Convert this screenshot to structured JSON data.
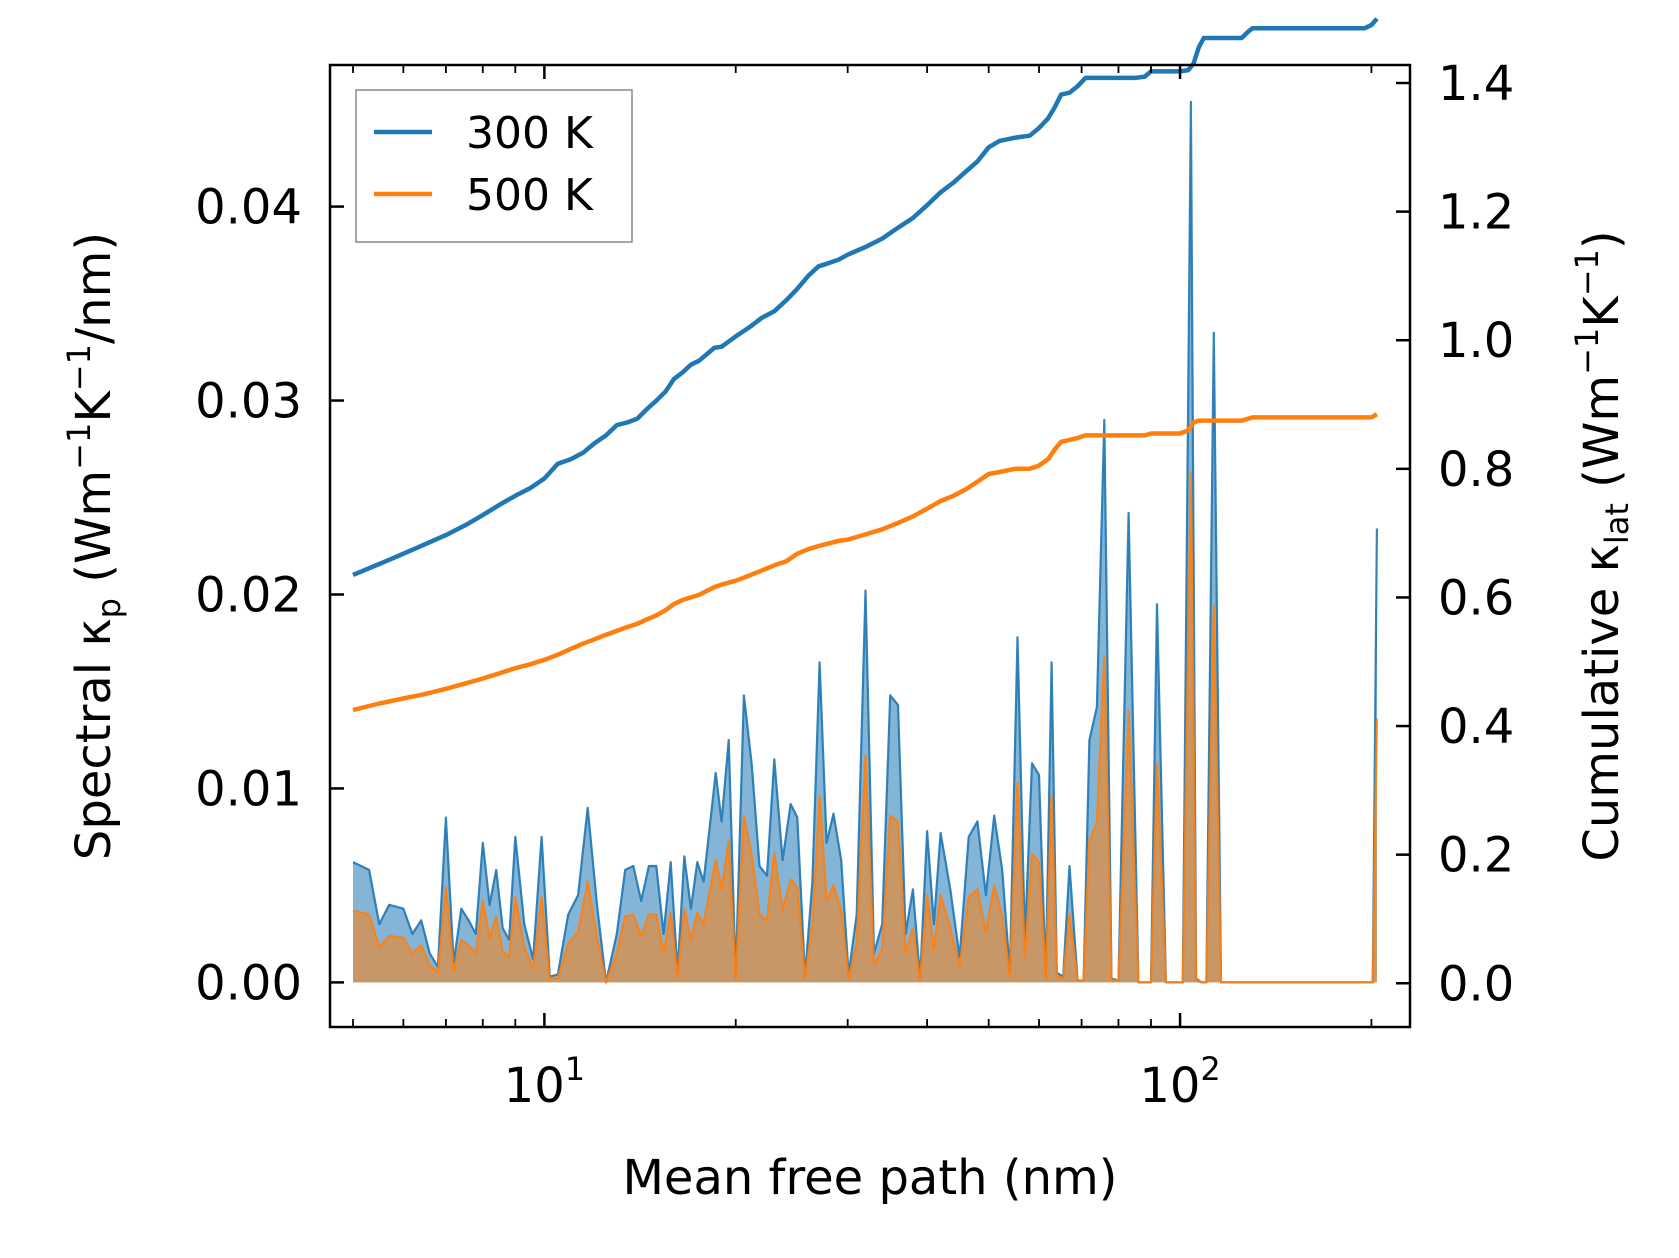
{
  "chart_data": {
    "type": "line",
    "xlabel": "Mean free path (nm)",
    "xscale": "log",
    "xlim": [
      4.6,
      230
    ],
    "x_ticks": [
      {
        "value": 10,
        "base": "10",
        "exp": "1"
      },
      {
        "value": 100,
        "base": "10",
        "exp": "2"
      }
    ],
    "y_left": {
      "label_pre": "Spectral κ",
      "label_sub": "p",
      "label_mid": " (Wm",
      "label_sup1": "−1",
      "label_mid2": "K",
      "label_sup2": "−1",
      "label_post": "/nm)",
      "lim": [
        -0.0023,
        0.0473
      ],
      "ticks": [
        0.0,
        0.01,
        0.02,
        0.03,
        0.04
      ],
      "tick_labels": [
        "0.00",
        "0.01",
        "0.02",
        "0.03",
        "0.04"
      ]
    },
    "y_right": {
      "label_pre": "Cumulative κ",
      "label_sub": "lat",
      "label_mid": " (Wm",
      "label_sup1": "−1",
      "label_mid2": "K",
      "label_sup2": "−1",
      "label_post": ")",
      "lim": [
        -0.068,
        1.428
      ],
      "ticks": [
        0.0,
        0.2,
        0.4,
        0.6,
        0.8,
        1.0,
        1.2,
        1.4
      ],
      "tick_labels": [
        "0.0",
        "0.2",
        "0.4",
        "0.6",
        "0.8",
        "1.0",
        "1.2",
        "1.4"
      ]
    },
    "legend": {
      "position": "top-left",
      "entries": [
        "300 K",
        "500 K"
      ]
    },
    "colors": {
      "300 K": "#1f77b4",
      "500 K": "#ff7f0e"
    },
    "spectral_series": [
      {
        "name": "300 K",
        "x": [
          5.0,
          5.3,
          5.5,
          5.7,
          6.0,
          6.2,
          6.4,
          6.6,
          6.8,
          7.0,
          7.2,
          7.4,
          7.6,
          7.8,
          8.0,
          8.2,
          8.4,
          8.6,
          8.8,
          9.0,
          9.3,
          9.6,
          9.9,
          10.2,
          10.5,
          10.9,
          11.3,
          11.7,
          12.1,
          12.5,
          13.0,
          13.4,
          13.8,
          14.2,
          14.6,
          15.0,
          15.4,
          15.8,
          16.2,
          16.6,
          17.0,
          17.4,
          17.8,
          18.2,
          18.6,
          19.0,
          19.5,
          20.0,
          20.6,
          21.2,
          21.8,
          22.4,
          23.0,
          23.7,
          24.4,
          25.0,
          25.7,
          26.4,
          27.1,
          27.8,
          28.5,
          29.3,
          30.1,
          31.0,
          32.0,
          33.0,
          34.0,
          35.0,
          36.0,
          37.0,
          38.0,
          39.0,
          40.0,
          41.0,
          42.0,
          43.5,
          45.0,
          46.5,
          48.0,
          49.5,
          51.0,
          52.5,
          54.0,
          55.5,
          57.0,
          58.5,
          60.0,
          61.5,
          62.8,
          64.0,
          65.5,
          67.0,
          69.0,
          70.5,
          72.0,
          74.0,
          76.0,
          78.0,
          80.0,
          83.0,
          86.0,
          88.0,
          90.0,
          92.0,
          95.0,
          98.0,
          101.0,
          104.0,
          106.0,
          108.0,
          110.0,
          113.0,
          116.0,
          119.0,
          122.0,
          124.5,
          127.0,
          130.0,
          135.0,
          140.0,
          150.0,
          160.0,
          180.0,
          195.0,
          201.0,
          204.0
        ],
        "y": [
          0.0062,
          0.0058,
          0.003,
          0.004,
          0.0038,
          0.0025,
          0.0032,
          0.0015,
          0.0008,
          0.0085,
          0.001,
          0.0038,
          0.0032,
          0.0025,
          0.0072,
          0.004,
          0.0058,
          0.0028,
          0.0022,
          0.0075,
          0.003,
          0.0012,
          0.0075,
          0.0003,
          0.0004,
          0.0035,
          0.0045,
          0.009,
          0.004,
          0.0,
          0.0025,
          0.0058,
          0.006,
          0.0042,
          0.006,
          0.006,
          0.0025,
          0.0062,
          0.0005,
          0.0065,
          0.0038,
          0.0062,
          0.0052,
          0.008,
          0.0108,
          0.0083,
          0.0125,
          0.0003,
          0.0148,
          0.0112,
          0.006,
          0.0055,
          0.0115,
          0.0063,
          0.0092,
          0.0085,
          0.0003,
          0.0052,
          0.0165,
          0.0072,
          0.0087,
          0.0063,
          0.0004,
          0.0035,
          0.0202,
          0.0015,
          0.003,
          0.0148,
          0.0143,
          0.0025,
          0.0048,
          0.0002,
          0.0078,
          0.003,
          0.0077,
          0.0048,
          0.0013,
          0.0075,
          0.0083,
          0.0045,
          0.0086,
          0.0058,
          0.0005,
          0.0178,
          0.0022,
          0.0113,
          0.0107,
          0.0003,
          0.0165,
          0.0005,
          0.0003,
          0.006,
          0.0001,
          0.0001,
          0.0125,
          0.0142,
          0.029,
          0.0002,
          0.0001,
          0.0242,
          0.0,
          0.0,
          0.0,
          0.0195,
          0.0,
          0.0,
          0.0,
          0.0454,
          0.0002,
          0.0,
          0.0,
          0.0335,
          0.0,
          0.0,
          0.0,
          0.0,
          0.0,
          0.0,
          0.0,
          0.0,
          0.0,
          0.0,
          0.0,
          0.0,
          0.0,
          0.0234
        ]
      },
      {
        "name": "500 K",
        "x": [
          5.0,
          5.3,
          5.5,
          5.7,
          6.0,
          6.2,
          6.4,
          6.6,
          6.8,
          7.0,
          7.2,
          7.4,
          7.6,
          7.8,
          8.0,
          8.2,
          8.4,
          8.6,
          8.8,
          9.0,
          9.3,
          9.6,
          9.9,
          10.2,
          10.5,
          10.9,
          11.3,
          11.7,
          12.1,
          12.5,
          13.0,
          13.4,
          13.8,
          14.2,
          14.6,
          15.0,
          15.4,
          15.8,
          16.2,
          16.6,
          17.0,
          17.4,
          17.8,
          18.2,
          18.6,
          19.0,
          19.5,
          20.0,
          20.6,
          21.2,
          21.8,
          22.4,
          23.0,
          23.7,
          24.4,
          25.0,
          25.7,
          26.4,
          27.1,
          27.8,
          28.5,
          29.3,
          30.1,
          31.0,
          32.0,
          33.0,
          34.0,
          35.0,
          36.0,
          37.0,
          38.0,
          39.0,
          40.0,
          41.0,
          42.0,
          43.5,
          45.0,
          46.5,
          48.0,
          49.5,
          51.0,
          52.5,
          54.0,
          55.5,
          57.0,
          58.5,
          60.0,
          61.5,
          62.8,
          64.0,
          65.5,
          67.0,
          69.0,
          70.5,
          72.0,
          74.0,
          76.0,
          78.0,
          80.0,
          83.0,
          86.0,
          88.0,
          90.0,
          92.0,
          95.0,
          98.0,
          101.0,
          104.0,
          106.0,
          108.0,
          110.0,
          113.0,
          116.0,
          119.0,
          122.0,
          124.5,
          127.0,
          130.0,
          135.0,
          140.0,
          150.0,
          160.0,
          180.0,
          195.0,
          201.0,
          204.0
        ],
        "y": [
          0.0037,
          0.0035,
          0.0018,
          0.0024,
          0.0023,
          0.0015,
          0.0019,
          0.0009,
          0.0005,
          0.0049,
          0.0006,
          0.0022,
          0.0019,
          0.0015,
          0.0042,
          0.0023,
          0.0034,
          0.0016,
          0.0013,
          0.0044,
          0.0018,
          0.0007,
          0.0044,
          0.0002,
          0.0002,
          0.002,
          0.0026,
          0.0052,
          0.0023,
          0.0,
          0.0015,
          0.0034,
          0.0035,
          0.0024,
          0.0035,
          0.0035,
          0.0015,
          0.0036,
          0.0003,
          0.0038,
          0.0022,
          0.0036,
          0.003,
          0.0047,
          0.0063,
          0.0048,
          0.0073,
          0.0002,
          0.0086,
          0.0065,
          0.0035,
          0.0032,
          0.0067,
          0.0037,
          0.0053,
          0.0049,
          0.0002,
          0.003,
          0.0096,
          0.0042,
          0.005,
          0.0037,
          0.0002,
          0.002,
          0.0117,
          0.0009,
          0.0017,
          0.0086,
          0.0083,
          0.0015,
          0.0028,
          0.0001,
          0.0045,
          0.0017,
          0.0045,
          0.0028,
          0.0008,
          0.0044,
          0.0048,
          0.0026,
          0.005,
          0.0034,
          0.0003,
          0.0103,
          0.0013,
          0.0066,
          0.0062,
          0.0002,
          0.0096,
          0.0003,
          0.0002,
          0.0035,
          0.0001,
          0.0001,
          0.0073,
          0.0082,
          0.0168,
          0.0001,
          0.0001,
          0.014,
          0.0,
          0.0,
          0.0,
          0.0113,
          0.0,
          0.0,
          0.0,
          0.0263,
          0.0001,
          0.0,
          0.0,
          0.0194,
          0.0,
          0.0,
          0.0,
          0.0,
          0.0,
          0.0,
          0.0,
          0.0,
          0.0,
          0.0,
          0.0,
          0.0,
          0.0,
          0.0136
        ]
      }
    ],
    "cumulative_series": [
      {
        "name": "300 K",
        "x": [
          5.0,
          5.5,
          6.0,
          6.5,
          7.0,
          7.5,
          8.0,
          8.5,
          9.0,
          9.5,
          10.0,
          10.5,
          11.0,
          11.5,
          12.0,
          12.5,
          13.0,
          13.5,
          14.0,
          14.5,
          15.0,
          15.5,
          16.0,
          16.5,
          17.0,
          17.5,
          18.0,
          18.5,
          19.0,
          20.0,
          21.0,
          22.0,
          23.0,
          24.0,
          25.0,
          26.0,
          27.0,
          28.0,
          29.0,
          30.0,
          32.0,
          34.0,
          36.0,
          38.0,
          40.0,
          42.0,
          44.0,
          46.0,
          48.0,
          50.0,
          52.0,
          55.0,
          58.0,
          60.0,
          62.0,
          63.5,
          65.0,
          67.0,
          69.0,
          71.0,
          75.0,
          80.0,
          85.0,
          88.0,
          90.0,
          95.0,
          100.0,
          103.0,
          105.0,
          107.0,
          109.0,
          112.0,
          120.0,
          125.0,
          128.0,
          130.0,
          140.0,
          160.0,
          180.0,
          195.0,
          200.0,
          204.0
        ],
        "y": [
          0.635,
          0.652,
          0.668,
          0.683,
          0.697,
          0.712,
          0.728,
          0.744,
          0.758,
          0.77,
          0.785,
          0.808,
          0.815,
          0.825,
          0.84,
          0.852,
          0.868,
          0.872,
          0.878,
          0.893,
          0.906,
          0.92,
          0.94,
          0.95,
          0.962,
          0.968,
          0.978,
          0.988,
          0.99,
          1.006,
          1.02,
          1.035,
          1.045,
          1.062,
          1.08,
          1.1,
          1.115,
          1.12,
          1.125,
          1.133,
          1.145,
          1.158,
          1.175,
          1.19,
          1.21,
          1.23,
          1.245,
          1.262,
          1.278,
          1.3,
          1.31,
          1.315,
          1.318,
          1.33,
          1.345,
          1.362,
          1.382,
          1.385,
          1.395,
          1.408,
          1.408,
          1.408,
          1.408,
          1.41,
          1.418,
          1.418,
          1.418,
          1.42,
          1.43,
          1.455,
          1.47,
          1.47,
          1.47,
          1.47,
          1.48,
          1.485,
          1.485,
          1.485,
          1.485,
          1.485,
          1.49,
          1.5
        ]
      },
      {
        "name": "500 K",
        "x": [
          5.0,
          5.5,
          6.0,
          6.5,
          7.0,
          7.5,
          8.0,
          8.5,
          9.0,
          9.5,
          10.0,
          10.5,
          11.0,
          11.5,
          12.0,
          12.5,
          13.0,
          13.5,
          14.0,
          14.5,
          15.0,
          15.5,
          16.0,
          16.5,
          17.0,
          17.5,
          18.0,
          18.5,
          19.0,
          20.0,
          21.0,
          22.0,
          23.0,
          24.0,
          25.0,
          26.0,
          27.0,
          28.0,
          29.0,
          30.0,
          32.0,
          34.0,
          36.0,
          38.0,
          40.0,
          42.0,
          44.0,
          46.0,
          48.0,
          50.0,
          52.0,
          55.0,
          58.0,
          60.0,
          62.0,
          63.5,
          65.0,
          67.0,
          69.0,
          71.0,
          75.0,
          80.0,
          85.0,
          88.0,
          90.0,
          95.0,
          100.0,
          103.0,
          105.0,
          107.0,
          109.0,
          112.0,
          120.0,
          125.0,
          128.0,
          130.0,
          140.0,
          160.0,
          180.0,
          195.0,
          200.0,
          204.0
        ],
        "y": [
          0.425,
          0.435,
          0.443,
          0.45,
          0.458,
          0.466,
          0.474,
          0.482,
          0.49,
          0.496,
          0.503,
          0.511,
          0.52,
          0.528,
          0.535,
          0.542,
          0.548,
          0.554,
          0.559,
          0.566,
          0.572,
          0.58,
          0.59,
          0.596,
          0.6,
          0.604,
          0.61,
          0.616,
          0.62,
          0.626,
          0.634,
          0.642,
          0.65,
          0.656,
          0.668,
          0.675,
          0.68,
          0.684,
          0.688,
          0.69,
          0.698,
          0.706,
          0.716,
          0.726,
          0.738,
          0.75,
          0.758,
          0.768,
          0.78,
          0.792,
          0.795,
          0.8,
          0.8,
          0.805,
          0.815,
          0.83,
          0.842,
          0.845,
          0.848,
          0.852,
          0.852,
          0.852,
          0.852,
          0.852,
          0.855,
          0.855,
          0.855,
          0.86,
          0.872,
          0.875,
          0.875,
          0.875,
          0.875,
          0.875,
          0.878,
          0.88,
          0.88,
          0.88,
          0.88,
          0.88,
          0.88,
          0.885
        ]
      }
    ]
  }
}
